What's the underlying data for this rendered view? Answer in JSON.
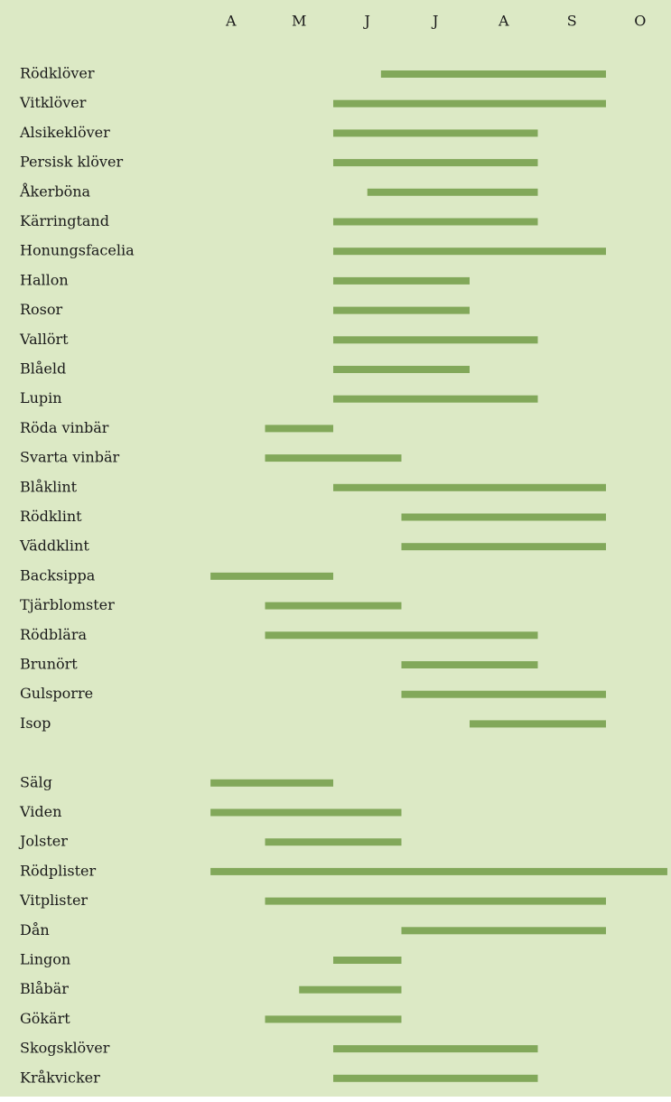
{
  "chart_data": {
    "type": "range-bar",
    "categories": [
      "Rödklöver",
      "Vitklöver",
      "Alsikeklöver",
      "Persisk klöver",
      "Åkerböna",
      "Kärringtand",
      "Honungsfacelia",
      "Hallon",
      "Rosor",
      "Vallört",
      "Blåeld",
      "Lupin",
      "Röda vinbär",
      "Svarta vinbär",
      "Blåklint",
      "Rödklint",
      "Väddklint",
      "Backsippa",
      "Tjärblomster",
      "Rödblära",
      "Brunört",
      "Gulsporre",
      "Isop",
      null,
      "Sälg",
      "Viden",
      "Jolster",
      "Rödplister",
      "Vitplister",
      "Dån",
      "Lingon",
      "Blåbär",
      "Gökärt",
      "Skogsklöver",
      "Kråkvicker"
    ],
    "starts": [
      6.7,
      6,
      6,
      6,
      6.5,
      6,
      6,
      6,
      6,
      6,
      6,
      6,
      5,
      5,
      6,
      7,
      7,
      4.2,
      5,
      5,
      7,
      7,
      8,
      null,
      4.2,
      4.2,
      5,
      4.2,
      5,
      7,
      6,
      5.5,
      5,
      6,
      6
    ],
    "ends": [
      10,
      10,
      9,
      9,
      9,
      9,
      10,
      8,
      8,
      9,
      8,
      9,
      6,
      7,
      10,
      10,
      10,
      6,
      7,
      9,
      9,
      10,
      10,
      null,
      6,
      7,
      7,
      10.9,
      10,
      10,
      7,
      7,
      7,
      9,
      9
    ],
    "color": "#82a85a",
    "xlim": [
      4,
      11
    ],
    "xticks": [
      {
        "value": 4.5,
        "label": "A"
      },
      {
        "value": 5.5,
        "label": "M"
      },
      {
        "value": 6.5,
        "label": "J"
      },
      {
        "value": 7.5,
        "label": "J"
      },
      {
        "value": 8.5,
        "label": "A"
      },
      {
        "value": 9.5,
        "label": "S"
      },
      {
        "value": 10.5,
        "label": "O"
      }
    ]
  }
}
